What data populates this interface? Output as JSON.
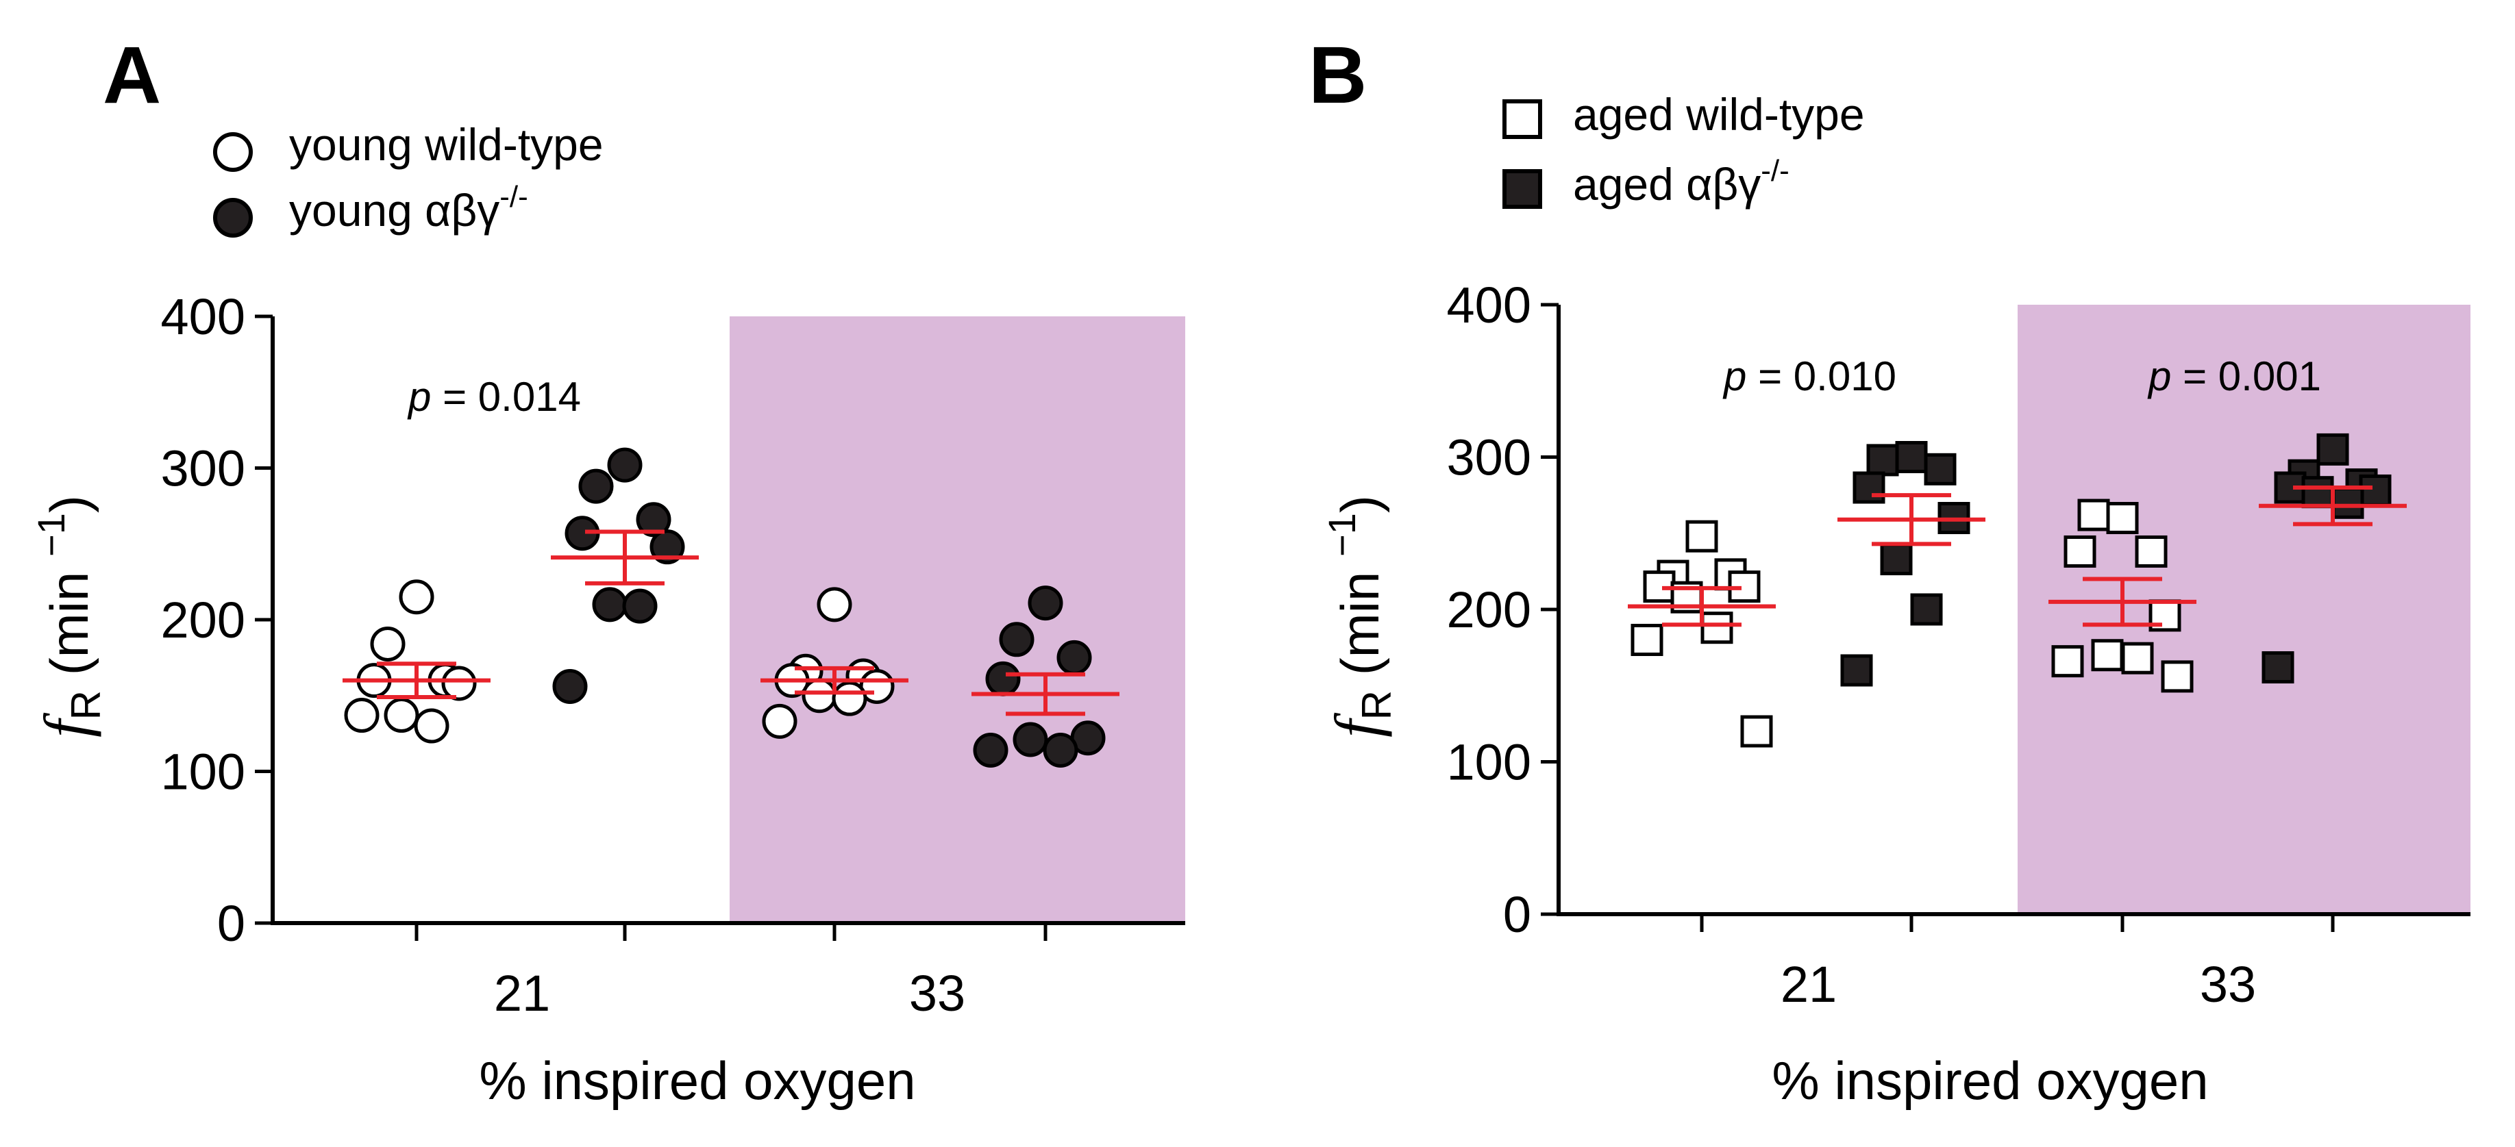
{
  "chart_data": [
    {
      "panel": "A",
      "type": "scatter",
      "legend": [
        {
          "label_prefix": "young wild-type",
          "label_sup": "",
          "marker": "circle",
          "fill": "#ffffff"
        },
        {
          "label_prefix": "young αβγ",
          "label_sup": "-/-",
          "marker": "circle",
          "fill": "#231f20"
        }
      ],
      "ylabel_symbol": "f",
      "ylabel_subscript": "R",
      "ylabel_units": "(min −1)",
      "ylabel_unit_text": "(min ",
      "ylabel_unit_sup": "−1",
      "ylabel_unit_close": ")",
      "xlabel": "% inspired oxygen",
      "ylim": [
        0,
        400
      ],
      "yticks": [
        "0",
        "100",
        "200",
        "300",
        "400"
      ],
      "ytick_values": [
        0,
        100,
        200,
        300,
        400
      ],
      "categories": [
        "21",
        "33"
      ],
      "shaded_category": "33",
      "shade_color": "#dbb9da",
      "mean_color": "#e8232b",
      "annotations": [
        {
          "category": "21",
          "p_label": "p",
          "p_value": "= 0.014"
        }
      ],
      "series": [
        {
          "name": "young wild-type",
          "category": "21",
          "values": [
            215,
            184,
            160,
            160,
            158,
            137,
            130,
            137
          ]
        },
        {
          "name": "young αβγ-/-",
          "category": "21",
          "values": [
            302,
            288,
            266,
            257,
            248,
            210,
            209,
            156
          ]
        },
        {
          "name": "young wild-type",
          "category": "33",
          "values": [
            210,
            166,
            163,
            160,
            156,
            150,
            148,
            133
          ]
        },
        {
          "name": "young αβγ-/-",
          "category": "33",
          "values": [
            211,
            187,
            175,
            161,
            122,
            121,
            114,
            114
          ]
        }
      ],
      "means": [
        {
          "category": "21",
          "group": "young wild-type",
          "mean": 160,
          "sem": 11
        },
        {
          "category": "21",
          "group": "young αβγ-/-",
          "mean": 241,
          "sem": 17
        },
        {
          "category": "33",
          "group": "young wild-type",
          "mean": 160,
          "sem": 8
        },
        {
          "category": "33",
          "group": "young αβγ-/-",
          "mean": 151,
          "sem": 13
        }
      ]
    },
    {
      "panel": "B",
      "type": "scatter",
      "legend": [
        {
          "label_prefix": "aged wild-type",
          "label_sup": "",
          "marker": "square",
          "fill": "#ffffff"
        },
        {
          "label_prefix": "aged αβγ",
          "label_sup": "-/-",
          "marker": "square",
          "fill": "#231f20"
        }
      ],
      "ylabel_symbol": "f",
      "ylabel_subscript": "R",
      "ylabel_units": "(min −1)",
      "ylabel_unit_text": "(min ",
      "ylabel_unit_sup": "−1",
      "ylabel_unit_close": ")",
      "xlabel": "% inspired oxygen",
      "ylim": [
        0,
        400
      ],
      "yticks": [
        "0",
        "100",
        "200",
        "300",
        "400"
      ],
      "ytick_values": [
        0,
        100,
        200,
        300,
        400
      ],
      "categories": [
        "21",
        "33"
      ],
      "shaded_category": "33",
      "shade_color": "#dbb9da",
      "mean_color": "#e8232b",
      "annotations": [
        {
          "category": "21",
          "p_label": "p",
          "p_value": "= 0.010"
        },
        {
          "category": "33",
          "p_label": "p",
          "p_value": "= 0.001"
        }
      ],
      "series": [
        {
          "name": "aged wild-type",
          "category": "21",
          "values": [
            248,
            222,
            223,
            215,
            215,
            208,
            188,
            180,
            120
          ]
        },
        {
          "name": "aged αβγ-/-",
          "category": "21",
          "values": [
            300,
            298,
            292,
            280,
            260,
            233,
            200,
            160
          ]
        },
        {
          "name": "aged wild-type",
          "category": "33",
          "values": [
            260,
            262,
            238,
            238,
            196,
            170,
            168,
            166,
            156
          ]
        },
        {
          "name": "aged αβγ-/-",
          "category": "33",
          "values": [
            305,
            288,
            282,
            280,
            278,
            277,
            270,
            162
          ]
        }
      ],
      "means": [
        {
          "category": "21",
          "group": "aged wild-type",
          "mean": 202,
          "sem": 12
        },
        {
          "category": "21",
          "group": "aged αβγ-/-",
          "mean": 259,
          "sem": 16
        },
        {
          "category": "33",
          "group": "aged wild-type",
          "mean": 205,
          "sem": 15
        },
        {
          "category": "33",
          "group": "aged αβγ-/-",
          "mean": 268,
          "sem": 12
        }
      ]
    }
  ]
}
